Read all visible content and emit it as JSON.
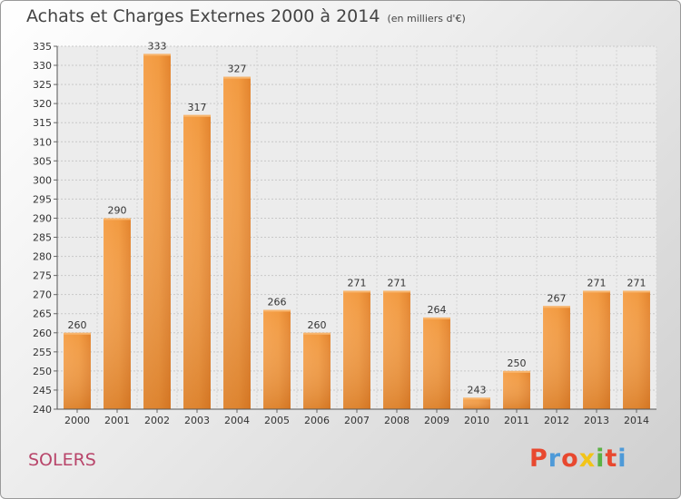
{
  "header": {
    "title": "Achats et Charges Externes 2000 à 2014",
    "unit": "(en milliers d'€)"
  },
  "footer": {
    "commune": "SOLERS",
    "brand": "Proxiti",
    "brand_colors": [
      "#e8482f",
      "#4e9ad8",
      "#e8482f",
      "#f2c418",
      "#5bb244",
      "#e8482f",
      "#4e9ad8"
    ]
  },
  "chart_data": {
    "type": "bar",
    "title": "Achats et Charges Externes 2000 à 2014",
    "xlabel": "",
    "ylabel": "",
    "categories": [
      "2000",
      "2001",
      "2002",
      "2003",
      "2004",
      "2005",
      "2006",
      "2007",
      "2008",
      "2009",
      "2010",
      "2011",
      "2012",
      "2013",
      "2014"
    ],
    "values": [
      260,
      290,
      333,
      317,
      327,
      266,
      260,
      271,
      271,
      264,
      243,
      250,
      267,
      271,
      271
    ],
    "ylim": [
      240,
      335
    ],
    "yticks": [
      240,
      245,
      250,
      255,
      260,
      265,
      270,
      275,
      280,
      285,
      290,
      295,
      300,
      305,
      310,
      315,
      320,
      325,
      330,
      335
    ],
    "grid": true,
    "bar_color": "#f0953a",
    "bar_color_dark": "#d06a18"
  }
}
